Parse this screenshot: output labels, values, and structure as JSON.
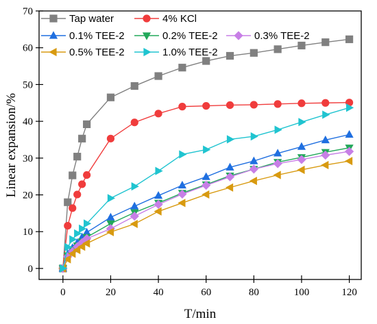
{
  "chart_data": {
    "type": "line",
    "title": "",
    "xlabel": "T/min",
    "ylabel": "Linear expansion/%",
    "xlim": [
      -10,
      125
    ],
    "ylim": [
      -3,
      70
    ],
    "x_ticks": [
      0,
      20,
      40,
      60,
      80,
      100,
      120
    ],
    "y_ticks": [
      0,
      10,
      20,
      30,
      40,
      50,
      60,
      70
    ],
    "legend_position": "top-left",
    "grid": false,
    "series": [
      {
        "name": "Tap water",
        "color": "#808080",
        "marker": "square",
        "x": [
          0,
          2,
          4,
          6,
          8,
          10,
          20,
          30,
          40,
          50,
          60,
          70,
          80,
          90,
          100,
          110,
          120
        ],
        "y": [
          0,
          18.0,
          25.3,
          30.4,
          35.3,
          39.2,
          46.5,
          49.6,
          52.3,
          54.6,
          56.4,
          57.8,
          58.6,
          59.6,
          60.6,
          61.5,
          62.3
        ]
      },
      {
        "name": "4% KCl",
        "color": "#f03c3c",
        "marker": "circle",
        "x": [
          0,
          2,
          4,
          6,
          8,
          10,
          20,
          30,
          40,
          50,
          60,
          70,
          80,
          90,
          100,
          110,
          120
        ],
        "y": [
          0,
          11.6,
          16.4,
          20.1,
          22.9,
          25.4,
          35.3,
          39.7,
          42.1,
          44.0,
          44.2,
          44.4,
          44.5,
          44.7,
          44.9,
          45.0,
          45.1
        ]
      },
      {
        "name": "0.1% TEE-2",
        "color": "#1f6fe0",
        "marker": "triangle-up",
        "x": [
          0,
          2,
          4,
          6,
          8,
          10,
          20,
          30,
          40,
          50,
          60,
          70,
          80,
          90,
          100,
          110,
          120
        ],
        "y": [
          0,
          4.0,
          5.6,
          7.0,
          8.5,
          9.8,
          13.9,
          16.9,
          19.8,
          22.6,
          24.9,
          27.5,
          29.2,
          31.3,
          33.1,
          34.9,
          36.4
        ]
      },
      {
        "name": "0.2% TEE-2",
        "color": "#22a85a",
        "marker": "triangle-down",
        "x": [
          0,
          2,
          4,
          6,
          8,
          10,
          20,
          30,
          40,
          50,
          60,
          70,
          80,
          90,
          100,
          110,
          120
        ],
        "y": [
          0,
          3.5,
          5.1,
          6.2,
          7.3,
          8.5,
          12.2,
          15.2,
          17.8,
          20.5,
          22.8,
          25.2,
          27.0,
          28.9,
          30.2,
          31.6,
          32.8
        ]
      },
      {
        "name": "0.3% TEE-2",
        "color": "#c77fe6",
        "marker": "diamond",
        "x": [
          0,
          2,
          4,
          6,
          8,
          10,
          20,
          30,
          40,
          50,
          60,
          70,
          80,
          90,
          100,
          110,
          120
        ],
        "y": [
          0,
          3.2,
          4.6,
          5.9,
          7.0,
          8.1,
          10.8,
          14.2,
          17.4,
          20.2,
          22.6,
          24.9,
          27.0,
          28.5,
          29.6,
          30.8,
          31.8
        ]
      },
      {
        "name": "0.5% TEE-2",
        "color": "#d89a10",
        "marker": "triangle-left",
        "x": [
          0,
          2,
          4,
          6,
          8,
          10,
          20,
          30,
          40,
          50,
          60,
          70,
          80,
          90,
          100,
          110,
          120
        ],
        "y": [
          0,
          2.5,
          4.0,
          5.0,
          5.9,
          6.8,
          9.9,
          12.1,
          15.5,
          17.8,
          20.1,
          22.0,
          23.8,
          25.4,
          26.8,
          28.1,
          29.2
        ]
      },
      {
        "name": "1.0% TEE-2",
        "color": "#20c4d0",
        "marker": "triangle-right",
        "x": [
          0,
          2,
          4,
          6,
          8,
          10,
          20,
          30,
          40,
          50,
          60,
          70,
          80,
          90,
          100,
          110,
          120
        ],
        "y": [
          0,
          5.8,
          7.9,
          9.5,
          10.8,
          12.2,
          19.1,
          22.3,
          26.5,
          31.0,
          32.3,
          35.1,
          35.9,
          37.7,
          39.8,
          41.8,
          43.7
        ]
      }
    ]
  }
}
